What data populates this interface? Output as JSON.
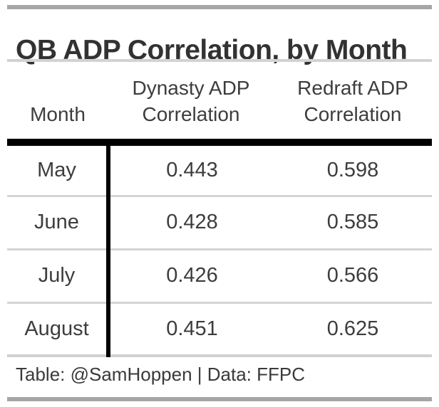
{
  "title": "QB ADP Correlation, by Month",
  "table": {
    "headers": {
      "month": "Month",
      "dynasty_line1": "Dynasty ADP",
      "dynasty_line2": "Correlation",
      "redraft_line1": "Redraft ADP",
      "redraft_line2": "Correlation"
    }
  },
  "footer": {
    "source_note": "Table: @SamHoppen | Data: FFPC"
  },
  "colors": {
    "bar_gray": "#a6a6a6",
    "light_rule_gray": "#d2d2d2",
    "row_separator_gray": "#d4d4d4",
    "divider_black": "#000000",
    "title_text": "#323232",
    "body_text": "#3d3d3d",
    "background": "#ffffff"
  },
  "chart_data": {
    "type": "table",
    "title": "QB ADP Correlation, by Month",
    "columns": [
      "Month",
      "Dynasty ADP Correlation",
      "Redraft ADP Correlation"
    ],
    "rows": [
      [
        "May",
        0.443,
        0.598
      ],
      [
        "June",
        0.428,
        0.585
      ],
      [
        "July",
        0.426,
        0.566
      ],
      [
        "August",
        0.451,
        0.625
      ]
    ],
    "source_note": "Table: @SamHoppen | Data: FFPC"
  }
}
